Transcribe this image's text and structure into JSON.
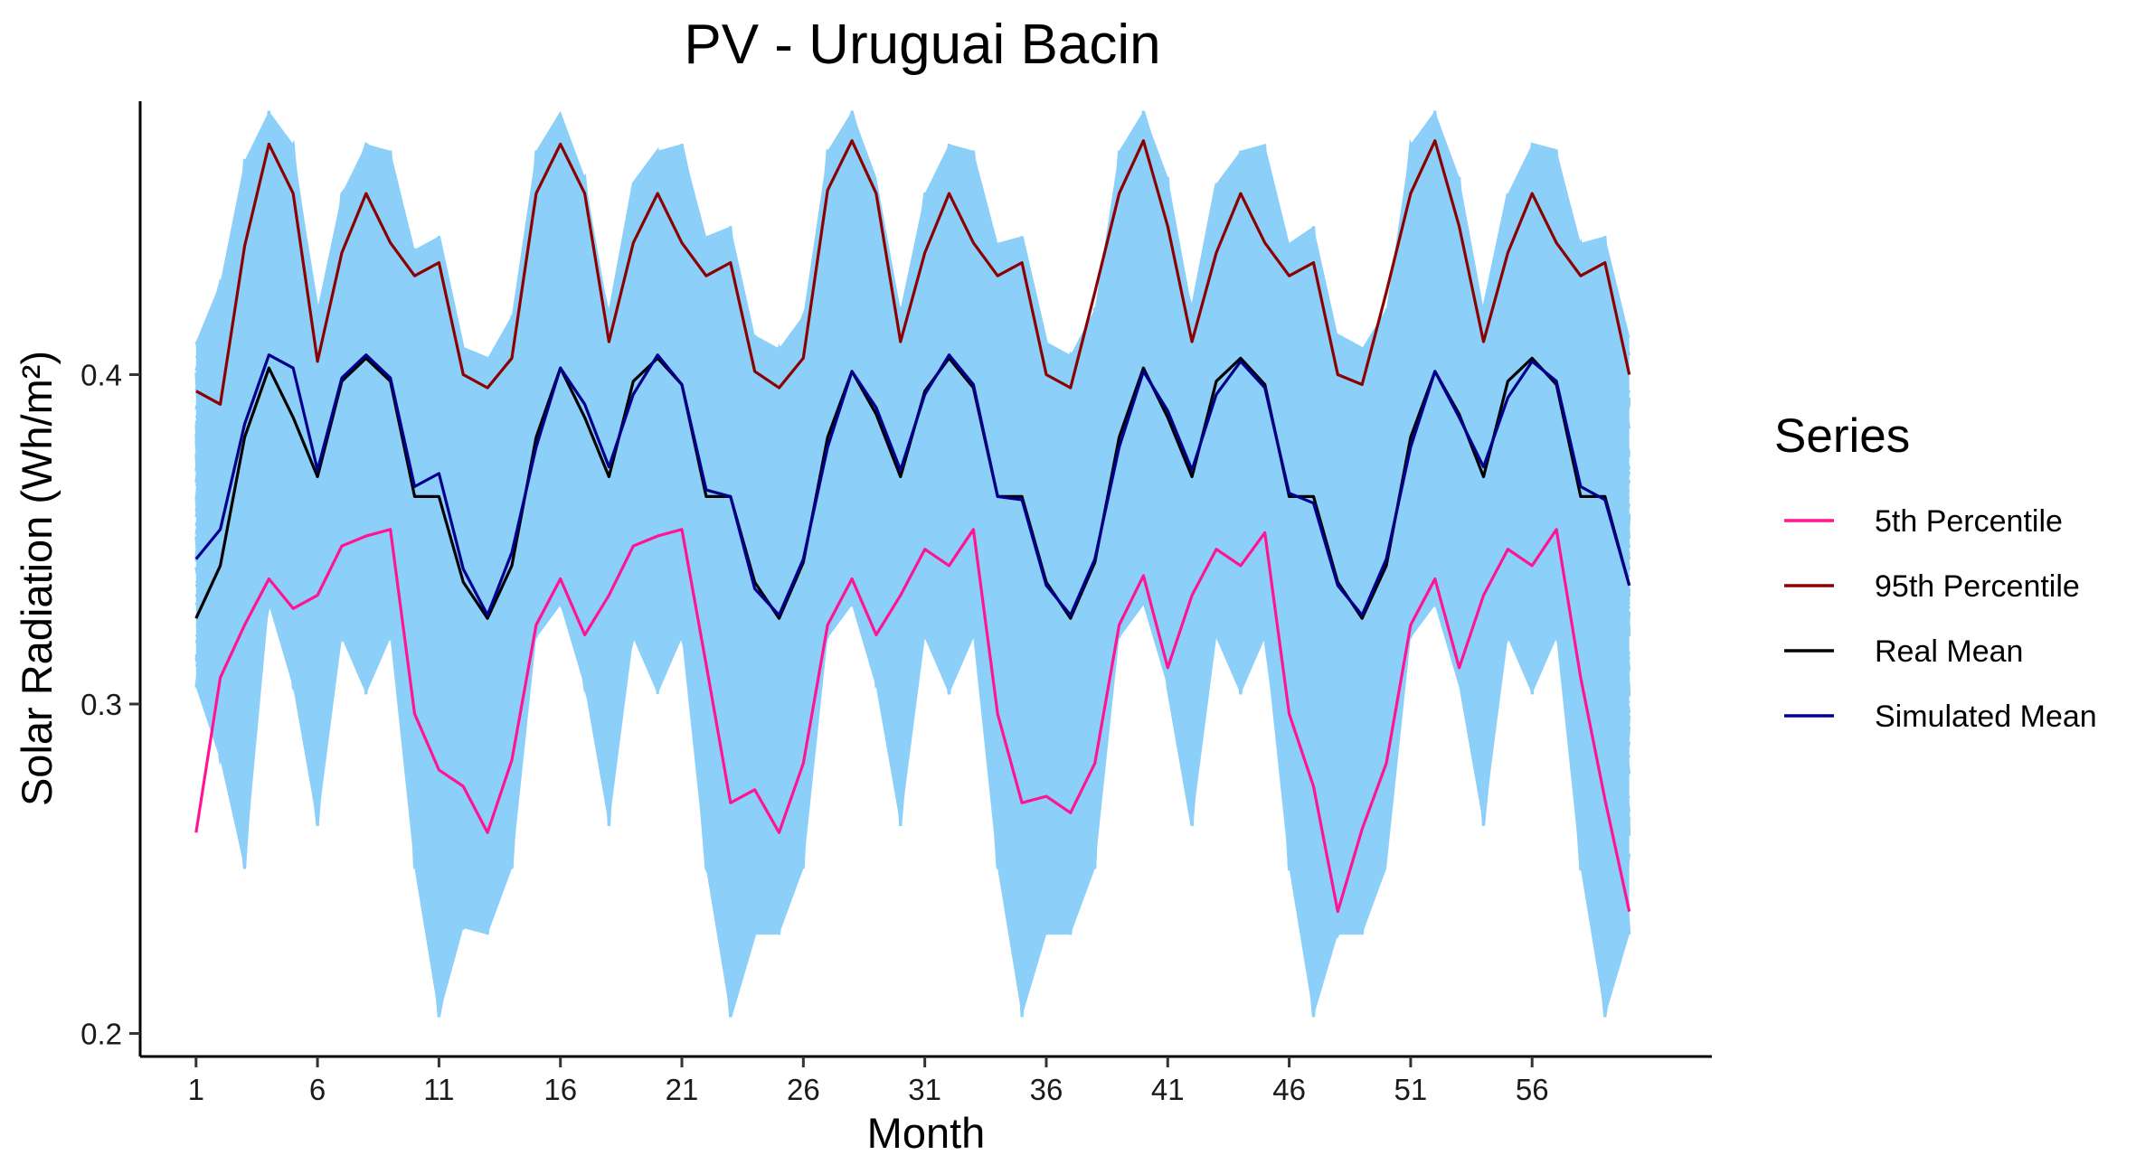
{
  "chart_data": {
    "type": "line",
    "title": "PV - Uruguai Bacin",
    "xlabel": "Month",
    "ylabel": "Solar Radiation (Wh/m²)",
    "x_ticks": [
      1,
      6,
      11,
      16,
      21,
      26,
      31,
      36,
      41,
      46,
      51,
      56
    ],
    "y_ticks": [
      0.2,
      0.3,
      0.4
    ],
    "y_tick_labels": [
      "0.2",
      "0.3",
      "0.4"
    ],
    "xlim": [
      -1.3,
      63.4
    ],
    "ylim": [
      0.193,
      0.483
    ],
    "grid": false,
    "legend": {
      "title": "Series",
      "position": "right",
      "entries": [
        "5th Percentile",
        "95th Percentile",
        "Real Mean",
        "Simulated Mean"
      ]
    },
    "x": [
      1,
      2,
      3,
      4,
      5,
      6,
      7,
      8,
      9,
      10,
      11,
      12,
      13,
      14,
      15,
      16,
      17,
      18,
      19,
      20,
      21,
      22,
      23,
      24,
      25,
      26,
      27,
      28,
      29,
      30,
      31,
      32,
      33,
      34,
      35,
      36,
      37,
      38,
      39,
      40,
      41,
      42,
      43,
      44,
      45,
      46,
      47,
      48,
      49,
      50,
      51,
      52,
      53,
      54,
      55,
      56,
      57,
      58,
      59,
      60
    ],
    "simulation_band": {
      "color": "#8ccff8",
      "upper": [
        0.41,
        0.428,
        0.465,
        0.48,
        0.47,
        0.42,
        0.455,
        0.47,
        0.468,
        0.438,
        0.442,
        0.408,
        0.405,
        0.418,
        0.468,
        0.48,
        0.46,
        0.418,
        0.458,
        0.468,
        0.47,
        0.442,
        0.445,
        0.412,
        0.408,
        0.418,
        0.468,
        0.48,
        0.46,
        0.42,
        0.455,
        0.47,
        0.468,
        0.44,
        0.442,
        0.41,
        0.406,
        0.42,
        0.468,
        0.48,
        0.46,
        0.42,
        0.458,
        0.468,
        0.47,
        0.44,
        0.445,
        0.412,
        0.408,
        0.42,
        0.47,
        0.48,
        0.46,
        0.42,
        0.455,
        0.47,
        0.468,
        0.44,
        0.442,
        0.412
      ],
      "lower": [
        0.305,
        0.283,
        0.25,
        0.33,
        0.305,
        0.263,
        0.32,
        0.303,
        0.32,
        0.25,
        0.205,
        0.232,
        0.23,
        0.25,
        0.32,
        0.33,
        0.305,
        0.263,
        0.32,
        0.303,
        0.32,
        0.25,
        0.205,
        0.23,
        0.23,
        0.25,
        0.32,
        0.33,
        0.305,
        0.263,
        0.32,
        0.303,
        0.32,
        0.25,
        0.205,
        0.23,
        0.23,
        0.25,
        0.32,
        0.33,
        0.305,
        0.263,
        0.32,
        0.303,
        0.32,
        0.25,
        0.205,
        0.23,
        0.23,
        0.25,
        0.32,
        0.33,
        0.305,
        0.263,
        0.32,
        0.303,
        0.32,
        0.25,
        0.205,
        0.23
      ]
    },
    "series": [
      {
        "name": "5th Percentile",
        "color": "#ff1493",
        "values": [
          0.261,
          0.308,
          0.324,
          0.338,
          0.329,
          0.333,
          0.348,
          0.351,
          0.353,
          0.297,
          0.28,
          0.275,
          0.261,
          0.283,
          0.324,
          0.338,
          0.321,
          0.333,
          0.348,
          0.351,
          0.353,
          0.312,
          0.27,
          0.274,
          0.261,
          0.282,
          0.324,
          0.338,
          0.321,
          0.333,
          0.347,
          0.342,
          0.353,
          0.297,
          0.27,
          0.272,
          0.267,
          0.282,
          0.324,
          0.339,
          0.311,
          0.333,
          0.347,
          0.342,
          0.352,
          0.297,
          0.275,
          0.237,
          0.262,
          0.282,
          0.324,
          0.338,
          0.311,
          0.333,
          0.347,
          0.342,
          0.353,
          0.308,
          0.271,
          0.237
        ]
      },
      {
        "name": "95th Percentile",
        "color": "#8b0000",
        "values": [
          0.395,
          0.391,
          0.439,
          0.47,
          0.455,
          0.404,
          0.437,
          0.455,
          0.44,
          0.43,
          0.434,
          0.4,
          0.396,
          0.405,
          0.455,
          0.47,
          0.455,
          0.41,
          0.44,
          0.455,
          0.44,
          0.43,
          0.434,
          0.401,
          0.396,
          0.405,
          0.456,
          0.471,
          0.455,
          0.41,
          0.437,
          0.455,
          0.44,
          0.43,
          0.434,
          0.4,
          0.396,
          0.425,
          0.455,
          0.471,
          0.445,
          0.41,
          0.437,
          0.455,
          0.44,
          0.43,
          0.434,
          0.4,
          0.397,
          0.425,
          0.455,
          0.471,
          0.445,
          0.41,
          0.437,
          0.455,
          0.44,
          0.43,
          0.434,
          0.4
        ]
      },
      {
        "name": "Real Mean",
        "color": "#000000",
        "values": [
          0.326,
          0.342,
          0.381,
          0.402,
          0.387,
          0.369,
          0.398,
          0.405,
          0.398,
          0.363,
          0.363,
          0.337,
          0.326,
          0.342,
          0.381,
          0.402,
          0.387,
          0.369,
          0.398,
          0.405,
          0.397,
          0.363,
          0.363,
          0.337,
          0.326,
          0.343,
          0.381,
          0.401,
          0.388,
          0.369,
          0.395,
          0.405,
          0.396,
          0.363,
          0.363,
          0.337,
          0.326,
          0.343,
          0.381,
          0.402,
          0.387,
          0.369,
          0.398,
          0.405,
          0.397,
          0.363,
          0.363,
          0.337,
          0.326,
          0.342,
          0.381,
          0.401,
          0.388,
          0.369,
          0.398,
          0.405,
          0.397,
          0.363,
          0.363,
          0.336
        ]
      },
      {
        "name": "Simulated Mean",
        "color": "#00008b",
        "values": [
          0.344,
          0.353,
          0.385,
          0.406,
          0.402,
          0.371,
          0.399,
          0.406,
          0.399,
          0.366,
          0.37,
          0.341,
          0.327,
          0.346,
          0.378,
          0.402,
          0.391,
          0.372,
          0.394,
          0.406,
          0.397,
          0.365,
          0.363,
          0.335,
          0.327,
          0.344,
          0.378,
          0.401,
          0.39,
          0.371,
          0.394,
          0.406,
          0.397,
          0.363,
          0.362,
          0.336,
          0.327,
          0.344,
          0.378,
          0.401,
          0.389,
          0.371,
          0.394,
          0.404,
          0.396,
          0.364,
          0.361,
          0.336,
          0.327,
          0.344,
          0.378,
          0.401,
          0.387,
          0.372,
          0.393,
          0.404,
          0.398,
          0.366,
          0.362,
          0.336
        ]
      }
    ]
  }
}
